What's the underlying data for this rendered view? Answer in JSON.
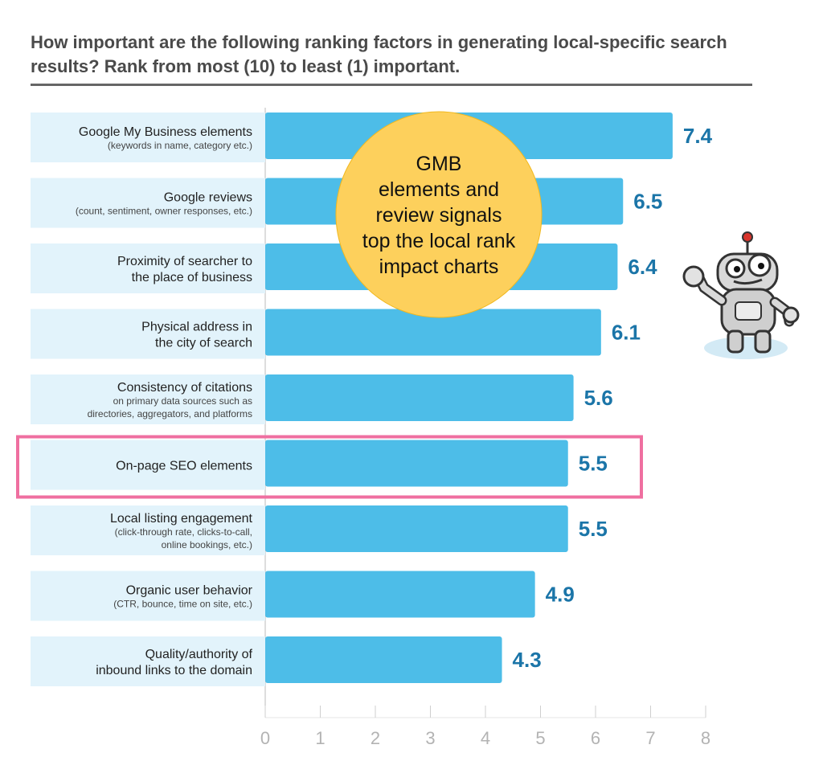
{
  "chart_data": {
    "type": "bar",
    "title": "How important are the following ranking factors in generating local-specific search results? Rank from most (10) to least (1) important.",
    "orientation": "horizontal",
    "categories": [
      {
        "label": "Google My Business elements",
        "sub": "(keywords in name, category etc.)"
      },
      {
        "label": "Google reviews",
        "sub": "(count, sentiment, owner responses, etc.)"
      },
      {
        "label": "Proximity of searcher to",
        "sub": "the place of business",
        "sub_style": "main"
      },
      {
        "label": "Physical address in",
        "sub": "the city of search",
        "sub_style": "main"
      },
      {
        "label": "Consistency of citations",
        "sub": "on primary data sources such as",
        "sub2": "directories, aggregators, and platforms"
      },
      {
        "label": "On-page SEO elements",
        "sub": ""
      },
      {
        "label": "Local listing engagement",
        "sub": "(click-through rate, clicks-to-call,",
        "sub2": "online bookings, etc.)"
      },
      {
        "label": "Organic user behavior",
        "sub": "(CTR, bounce, time on site, etc.)"
      },
      {
        "label": "Quality/authority of",
        "sub": "inbound links to the domain",
        "sub_style": "main"
      }
    ],
    "values": [
      7.4,
      6.5,
      6.4,
      6.1,
      5.6,
      5.5,
      5.5,
      4.9,
      4.3
    ],
    "value_labels": [
      "7.4",
      "6.5",
      "6.4",
      "6.1",
      "5.6",
      "5.5",
      "5.5",
      "4.9",
      "4.3"
    ],
    "xlim": [
      0,
      8
    ],
    "xticks": [
      "0",
      "1",
      "2",
      "3",
      "4",
      "5",
      "6",
      "7",
      "8"
    ],
    "highlighted_index": 5,
    "bar_color": "#4dbde8",
    "label_bg_color": "#e2f3fb",
    "value_color": "#1b75a8",
    "highlight_color": "#ef6fa0",
    "callout": {
      "lines": [
        "GMB",
        "elements and",
        "review signals",
        "top the local rank",
        "impact charts"
      ],
      "color": "#fdd05c"
    },
    "mascot": "robot-mascot-icon"
  }
}
